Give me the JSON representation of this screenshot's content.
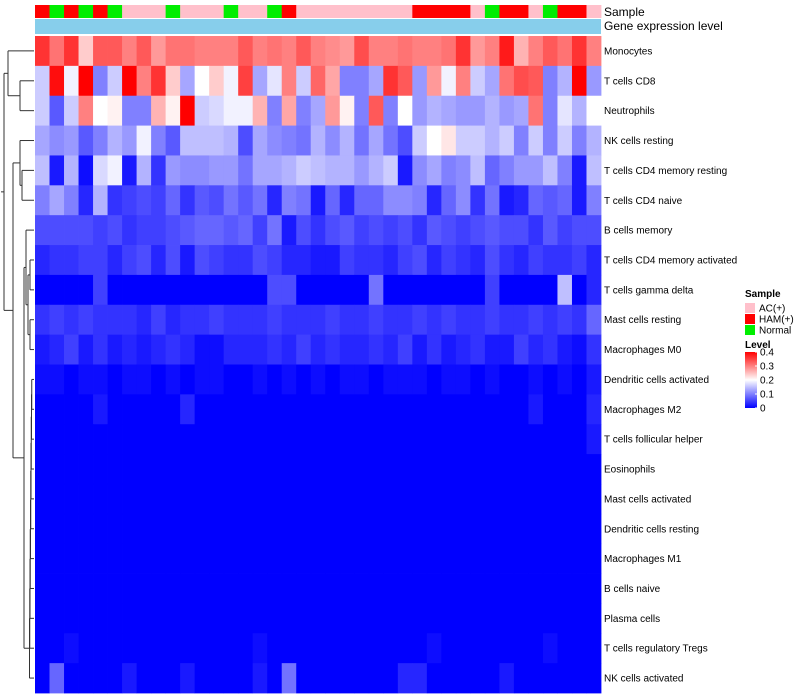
{
  "chart_data": {
    "type": "heatmap",
    "annotations": {
      "sample_label": "Sample",
      "gene_label": "Gene expression level"
    },
    "sample_groups": [
      "H",
      "N",
      "H",
      "N",
      "H",
      "N",
      "A",
      "A",
      "A",
      "N",
      "A",
      "A",
      "A",
      "N",
      "A",
      "A",
      "N",
      "H",
      "A",
      "A",
      "A",
      "A",
      "A",
      "A",
      "A",
      "A",
      "H",
      "H",
      "H",
      "H",
      "A",
      "N",
      "H",
      "H",
      "A",
      "N",
      "H",
      "H",
      "A"
    ],
    "rows": [
      "Monocytes",
      "T cells CD8",
      "Neutrophils",
      "NK cells resting",
      "T cells CD4 memory resting",
      "T cells CD4 naive",
      "B cells memory",
      "T cells CD4 memory activated",
      "T cells gamma delta",
      "Mast cells resting",
      "Macrophages M0",
      "Dendritic cells activated",
      "Macrophages M2",
      "T cells follicular helper",
      "Eosinophils",
      "Mast cells activated",
      "Dendritic cells resting",
      "Macrophages M1",
      "B cells naive",
      "Plasma cells",
      "T cells regulatory  Tregs",
      "NK cells activated"
    ],
    "values": [
      [
        0.36,
        0.31,
        0.36,
        0.24,
        0.33,
        0.33,
        0.3,
        0.33,
        0.28,
        0.31,
        0.31,
        0.3,
        0.3,
        0.3,
        0.33,
        0.3,
        0.31,
        0.3,
        0.33,
        0.3,
        0.29,
        0.28,
        0.34,
        0.3,
        0.3,
        0.31,
        0.3,
        0.3,
        0.31,
        0.36,
        0.28,
        0.3,
        0.38,
        0.26,
        0.3,
        0.33,
        0.31,
        0.36,
        0.3
      ],
      [
        0.16,
        0.39,
        0.19,
        0.4,
        0.1,
        0.16,
        0.4,
        0.3,
        0.36,
        0.24,
        0.13,
        0.2,
        0.24,
        0.19,
        0.35,
        0.13,
        0.18,
        0.3,
        0.16,
        0.32,
        0.27,
        0.1,
        0.1,
        0.13,
        0.36,
        0.33,
        0.12,
        0.28,
        0.19,
        0.3,
        0.16,
        0.13,
        0.31,
        0.34,
        0.33,
        0.1,
        0.14,
        0.4,
        0.12
      ],
      [
        0.16,
        0.07,
        0.16,
        0.3,
        0.2,
        0.21,
        0.1,
        0.1,
        0.26,
        0.21,
        0.4,
        0.16,
        0.17,
        0.19,
        0.19,
        0.26,
        0.1,
        0.27,
        0.1,
        0.13,
        0.28,
        0.21,
        0.1,
        0.33,
        0.1,
        0.2,
        0.12,
        0.14,
        0.13,
        0.12,
        0.12,
        0.14,
        0.12,
        0.13,
        0.31,
        0.1,
        0.18,
        0.14,
        0.2
      ],
      [
        0.13,
        0.11,
        0.12,
        0.07,
        0.1,
        0.14,
        0.12,
        0.19,
        0.1,
        0.07,
        0.15,
        0.15,
        0.15,
        0.14,
        0.06,
        0.13,
        0.11,
        0.1,
        0.09,
        0.14,
        0.11,
        0.14,
        0.09,
        0.13,
        0.09,
        0.06,
        0.16,
        0.2,
        0.22,
        0.16,
        0.16,
        0.14,
        0.16,
        0.1,
        0.16,
        0.1,
        0.16,
        0.1,
        0.14
      ],
      [
        0.15,
        0.02,
        0.14,
        0.01,
        0.17,
        0.19,
        0.02,
        0.14,
        0.04,
        0.12,
        0.11,
        0.11,
        0.12,
        0.12,
        0.09,
        0.13,
        0.13,
        0.14,
        0.16,
        0.15,
        0.14,
        0.14,
        0.12,
        0.14,
        0.16,
        0.02,
        0.11,
        0.13,
        0.1,
        0.11,
        0.15,
        0.08,
        0.1,
        0.12,
        0.12,
        0.15,
        0.1,
        0.02,
        0.15
      ],
      [
        0.1,
        0.13,
        0.1,
        0.03,
        0.14,
        0.04,
        0.05,
        0.06,
        0.05,
        0.08,
        0.04,
        0.07,
        0.06,
        0.09,
        0.07,
        0.09,
        0.03,
        0.1,
        0.09,
        0.02,
        0.08,
        0.03,
        0.08,
        0.08,
        0.11,
        0.11,
        0.1,
        0.03,
        0.08,
        0.11,
        0.04,
        0.09,
        0.02,
        0.03,
        0.08,
        0.07,
        0.08,
        0.02,
        0.1
      ],
      [
        0.06,
        0.06,
        0.06,
        0.06,
        0.05,
        0.06,
        0.04,
        0.05,
        0.05,
        0.06,
        0.07,
        0.08,
        0.08,
        0.07,
        0.08,
        0.05,
        0.09,
        0.02,
        0.06,
        0.04,
        0.06,
        0.07,
        0.05,
        0.06,
        0.05,
        0.06,
        0.04,
        0.07,
        0.06,
        0.05,
        0.06,
        0.07,
        0.06,
        0.06,
        0.04,
        0.07,
        0.05,
        0.06,
        0.06
      ],
      [
        0.03,
        0.04,
        0.04,
        0.05,
        0.05,
        0.03,
        0.05,
        0.06,
        0.03,
        0.06,
        0.02,
        0.06,
        0.05,
        0.04,
        0.04,
        0.06,
        0.05,
        0.03,
        0.03,
        0.02,
        0.02,
        0.05,
        0.04,
        0.04,
        0.03,
        0.05,
        0.06,
        0.03,
        0.05,
        0.04,
        0.03,
        0.06,
        0.04,
        0.03,
        0.05,
        0.04,
        0.04,
        0.05,
        0.03
      ],
      [
        0.0,
        0.0,
        0.0,
        0.0,
        0.05,
        0.0,
        0.0,
        0.0,
        0.0,
        0.0,
        0.0,
        0.0,
        0.0,
        0.0,
        0.0,
        0.0,
        0.06,
        0.06,
        0.0,
        0.0,
        0.0,
        0.0,
        0.0,
        0.09,
        0.0,
        0.0,
        0.0,
        0.0,
        0.0,
        0.0,
        0.0,
        0.05,
        0.0,
        0.0,
        0.0,
        0.0,
        0.15,
        0.0,
        0.03
      ],
      [
        0.04,
        0.05,
        0.04,
        0.05,
        0.04,
        0.04,
        0.04,
        0.03,
        0.05,
        0.03,
        0.04,
        0.04,
        0.05,
        0.04,
        0.04,
        0.04,
        0.05,
        0.04,
        0.04,
        0.04,
        0.05,
        0.04,
        0.04,
        0.05,
        0.04,
        0.04,
        0.05,
        0.04,
        0.05,
        0.04,
        0.04,
        0.05,
        0.04,
        0.04,
        0.05,
        0.04,
        0.05,
        0.04,
        0.08
      ],
      [
        0.02,
        0.03,
        0.05,
        0.02,
        0.04,
        0.02,
        0.03,
        0.02,
        0.03,
        0.04,
        0.03,
        0.01,
        0.01,
        0.03,
        0.03,
        0.03,
        0.04,
        0.03,
        0.05,
        0.03,
        0.04,
        0.03,
        0.03,
        0.04,
        0.03,
        0.05,
        0.02,
        0.04,
        0.02,
        0.03,
        0.04,
        0.02,
        0.02,
        0.05,
        0.03,
        0.04,
        0.02,
        0.01,
        0.04
      ],
      [
        0.01,
        0.01,
        0.0,
        0.01,
        0.01,
        0.0,
        0.01,
        0.01,
        0.0,
        0.01,
        0.0,
        0.01,
        0.01,
        0.0,
        0.0,
        0.01,
        0.0,
        0.01,
        0.0,
        0.01,
        0.0,
        0.01,
        0.01,
        0.0,
        0.01,
        0.01,
        0.01,
        0.0,
        0.01,
        0.01,
        0.0,
        0.01,
        0.0,
        0.0,
        0.01,
        0.0,
        0.01,
        0.0,
        0.02
      ],
      [
        0.0,
        0.0,
        0.0,
        0.0,
        0.02,
        0.0,
        0.0,
        0.0,
        0.0,
        0.0,
        0.03,
        0.0,
        0.0,
        0.0,
        0.0,
        0.0,
        0.0,
        0.0,
        0.0,
        0.0,
        0.0,
        0.0,
        0.0,
        0.0,
        0.0,
        0.0,
        0.0,
        0.0,
        0.0,
        0.0,
        0.0,
        0.0,
        0.0,
        0.0,
        0.02,
        0.0,
        0.0,
        0.0,
        0.03
      ],
      [
        0.0,
        0.0,
        0.0,
        0.0,
        0.0,
        0.0,
        0.0,
        0.0,
        0.0,
        0.0,
        0.0,
        0.0,
        0.0,
        0.0,
        0.0,
        0.0,
        0.0,
        0.0,
        0.0,
        0.0,
        0.0,
        0.0,
        0.0,
        0.0,
        0.0,
        0.0,
        0.0,
        0.0,
        0.0,
        0.0,
        0.0,
        0.0,
        0.0,
        0.0,
        0.0,
        0.0,
        0.0,
        0.0,
        0.02
      ],
      [
        0.0,
        0.0,
        0.0,
        0.0,
        0.0,
        0.0,
        0.0,
        0.0,
        0.0,
        0.0,
        0.0,
        0.0,
        0.0,
        0.0,
        0.0,
        0.0,
        0.0,
        0.0,
        0.0,
        0.0,
        0.0,
        0.0,
        0.0,
        0.0,
        0.0,
        0.0,
        0.0,
        0.0,
        0.0,
        0.0,
        0.0,
        0.0,
        0.0,
        0.0,
        0.0,
        0.0,
        0.0,
        0.0,
        0.0
      ],
      [
        0.0,
        0.0,
        0.0,
        0.0,
        0.0,
        0.0,
        0.0,
        0.0,
        0.0,
        0.0,
        0.0,
        0.0,
        0.0,
        0.0,
        0.0,
        0.0,
        0.0,
        0.0,
        0.0,
        0.0,
        0.0,
        0.0,
        0.0,
        0.0,
        0.0,
        0.0,
        0.0,
        0.0,
        0.0,
        0.0,
        0.0,
        0.0,
        0.0,
        0.0,
        0.0,
        0.0,
        0.0,
        0.0,
        0.0
      ],
      [
        0.0,
        0.0,
        0.0,
        0.0,
        0.0,
        0.0,
        0.0,
        0.0,
        0.0,
        0.0,
        0.0,
        0.0,
        0.0,
        0.0,
        0.0,
        0.0,
        0.0,
        0.0,
        0.0,
        0.0,
        0.0,
        0.0,
        0.0,
        0.0,
        0.0,
        0.0,
        0.0,
        0.0,
        0.0,
        0.0,
        0.0,
        0.0,
        0.0,
        0.0,
        0.0,
        0.0,
        0.0,
        0.0,
        0.0
      ],
      [
        0.0,
        0.0,
        0.0,
        0.0,
        0.0,
        0.0,
        0.0,
        0.0,
        0.0,
        0.0,
        0.0,
        0.0,
        0.0,
        0.0,
        0.0,
        0.0,
        0.0,
        0.0,
        0.0,
        0.0,
        0.0,
        0.0,
        0.0,
        0.0,
        0.0,
        0.0,
        0.0,
        0.0,
        0.0,
        0.0,
        0.0,
        0.0,
        0.0,
        0.0,
        0.0,
        0.0,
        0.0,
        0.0,
        0.0
      ],
      [
        0.0,
        0.0,
        0.0,
        0.0,
        0.0,
        0.0,
        0.0,
        0.0,
        0.0,
        0.0,
        0.0,
        0.0,
        0.0,
        0.0,
        0.0,
        0.0,
        0.0,
        0.0,
        0.0,
        0.0,
        0.0,
        0.0,
        0.0,
        0.0,
        0.0,
        0.0,
        0.0,
        0.0,
        0.0,
        0.0,
        0.0,
        0.0,
        0.0,
        0.0,
        0.0,
        0.0,
        0.0,
        0.0,
        0.0
      ],
      [
        0.0,
        0.0,
        0.0,
        0.0,
        0.0,
        0.0,
        0.0,
        0.0,
        0.0,
        0.0,
        0.0,
        0.0,
        0.0,
        0.0,
        0.0,
        0.0,
        0.0,
        0.0,
        0.0,
        0.0,
        0.0,
        0.0,
        0.0,
        0.0,
        0.0,
        0.0,
        0.0,
        0.0,
        0.0,
        0.0,
        0.0,
        0.0,
        0.0,
        0.0,
        0.0,
        0.0,
        0.0,
        0.0,
        0.0
      ],
      [
        0.0,
        0.0,
        0.01,
        0.0,
        0.0,
        0.0,
        0.0,
        0.0,
        0.0,
        0.0,
        0.0,
        0.0,
        0.0,
        0.0,
        0.0,
        0.01,
        0.0,
        0.0,
        0.0,
        0.0,
        0.0,
        0.0,
        0.0,
        0.0,
        0.0,
        0.0,
        0.0,
        0.01,
        0.0,
        0.0,
        0.0,
        0.0,
        0.0,
        0.0,
        0.0,
        0.01,
        0.0,
        0.0,
        0.0
      ],
      [
        0.0,
        0.08,
        0.0,
        0.0,
        0.0,
        0.0,
        0.02,
        0.0,
        0.0,
        0.0,
        0.02,
        0.0,
        0.0,
        0.0,
        0.0,
        0.02,
        0.0,
        0.09,
        0.0,
        0.0,
        0.0,
        0.0,
        0.0,
        0.0,
        0.0,
        0.03,
        0.03,
        0.0,
        0.0,
        0.0,
        0.0,
        0.0,
        0.02,
        0.0,
        0.0,
        0.0,
        0.0,
        0.0,
        0.0
      ]
    ],
    "legend": {
      "sample_title": "Sample",
      "sample_items": [
        {
          "key": "A",
          "label": "AC(+)",
          "color": "#ffc0cb"
        },
        {
          "key": "H",
          "label": "HAM(+)",
          "color": "#ff0000"
        },
        {
          "key": "N",
          "label": "Normal",
          "color": "#00ee00"
        }
      ],
      "level_title": "Level",
      "level_ticks": [
        "0.4",
        "0.3",
        "0.2",
        "0.1",
        "0"
      ],
      "level_range": [
        0,
        0.4
      ]
    },
    "colors": {
      "low": "#0000ff",
      "mid": "#ffffff",
      "high": "#ff0000",
      "gene_bar": "#87ceeb",
      "dendro": "#333333"
    }
  }
}
